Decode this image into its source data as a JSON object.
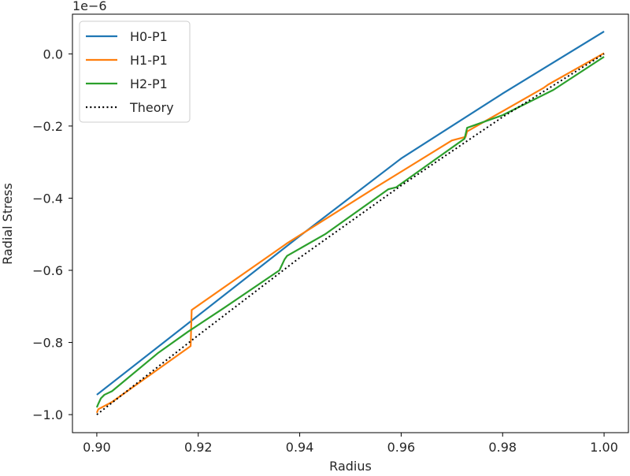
{
  "chart_data": {
    "type": "line",
    "xlabel": "Radius",
    "ylabel": "Radial Stress",
    "offset_text": "1e−6",
    "xlim": [
      0.8952,
      1.0048
    ],
    "ylim": [
      -1.05,
      0.11
    ],
    "xticks": [
      0.9,
      0.92,
      0.94,
      0.96,
      0.98,
      1.0
    ],
    "xtick_labels": [
      "0.90",
      "0.92",
      "0.94",
      "0.96",
      "0.98",
      "1.00"
    ],
    "yticks": [
      0.0,
      -0.2,
      -0.4,
      -0.6,
      -0.8,
      -1.0
    ],
    "ytick_labels": [
      "0.0",
      "−0.2",
      "−0.4",
      "−0.6",
      "−0.8",
      "−1.0"
    ],
    "grid": false,
    "legend_position": "top-left",
    "series": [
      {
        "name": "H0-P1",
        "color": "#1f77b4",
        "style": "solid",
        "x": [
          0.9,
          0.92,
          0.94,
          0.96,
          0.98,
          1.0
        ],
        "y": [
          -0.945,
          -0.725,
          -0.505,
          -0.29,
          -0.11,
          0.062
        ]
      },
      {
        "name": "H1-P1",
        "color": "#ff7f0e",
        "style": "solid",
        "x": [
          0.9,
          0.9003,
          0.903,
          0.9185,
          0.9187,
          0.937,
          0.9375,
          0.955,
          0.97,
          0.9727,
          0.973,
          0.988,
          0.989,
          1.0
        ],
        "y": [
          -0.995,
          -0.985,
          -0.965,
          -0.81,
          -0.71,
          -0.53,
          -0.525,
          -0.37,
          -0.24,
          -0.23,
          -0.215,
          -0.095,
          -0.085,
          0.002
        ]
      },
      {
        "name": "H2-P1",
        "color": "#2ca02c",
        "style": "solid",
        "x": [
          0.9,
          0.9003,
          0.9008,
          0.9015,
          0.903,
          0.912,
          0.918,
          0.925,
          0.936,
          0.937,
          0.9375,
          0.945,
          0.9575,
          0.959,
          0.96,
          0.968,
          0.9725,
          0.973,
          0.98,
          0.99,
          1.0
        ],
        "y": [
          -0.98,
          -0.97,
          -0.955,
          -0.945,
          -0.935,
          -0.83,
          -0.77,
          -0.705,
          -0.6,
          -0.57,
          -0.56,
          -0.5,
          -0.375,
          -0.37,
          -0.36,
          -0.28,
          -0.235,
          -0.205,
          -0.17,
          -0.1,
          -0.008
        ]
      },
      {
        "name": "Theory",
        "color": "#000000",
        "style": "dotted",
        "x": [
          0.9,
          0.92,
          0.94,
          0.96,
          0.98,
          1.0
        ],
        "y": [
          -1.0,
          -0.78,
          -0.565,
          -0.365,
          -0.175,
          0.0
        ]
      }
    ]
  }
}
